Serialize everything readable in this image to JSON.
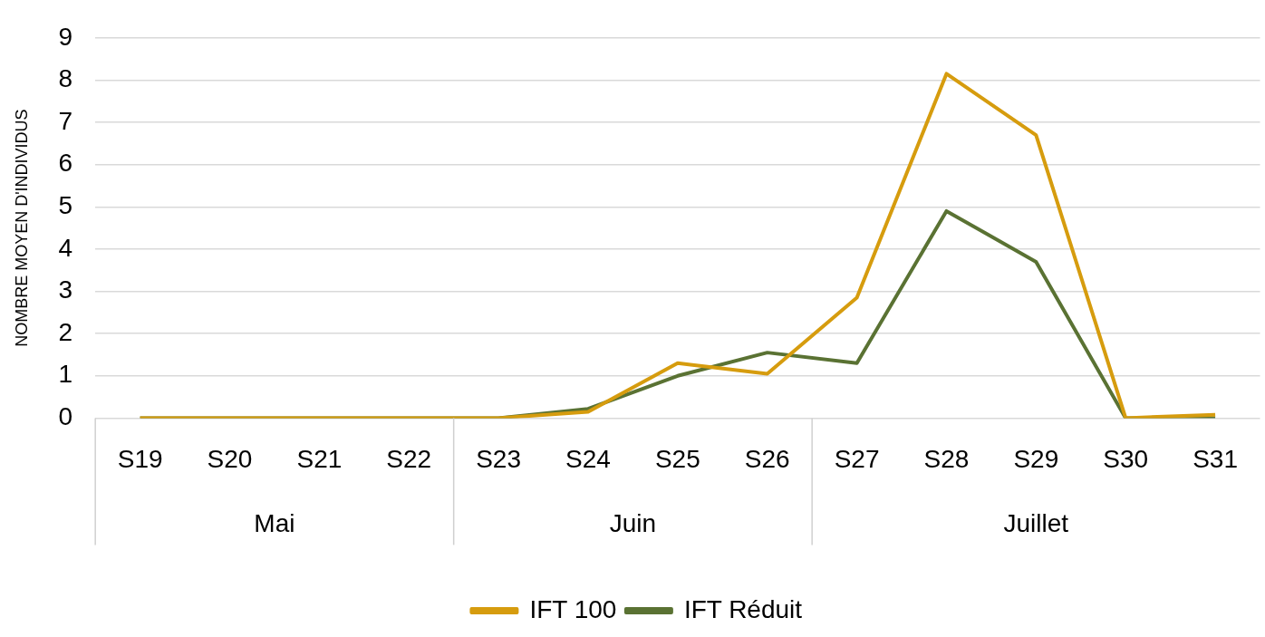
{
  "chart_data": {
    "type": "line",
    "ylabel": "NOMBRE MOYEN D'INDIVIDUS",
    "categories": [
      "S19",
      "S20",
      "S21",
      "S22",
      "S23",
      "S24",
      "S25",
      "S26",
      "S27",
      "S28",
      "S29",
      "S30",
      "S31"
    ],
    "series": [
      {
        "name": "IFT 100",
        "color": "#d69c0e",
        "values": [
          0,
          0,
          0,
          0,
          0,
          0.15,
          1.3,
          1.05,
          2.85,
          8.15,
          6.7,
          0,
          0.08
        ]
      },
      {
        "name": "IFT Réduit",
        "color": "#5a7233",
        "values": [
          0,
          0,
          0,
          0,
          0,
          0.22,
          1.0,
          1.55,
          1.3,
          4.9,
          3.7,
          0,
          0
        ]
      }
    ],
    "annotations": [
      "Mai",
      "Juin",
      "Juillet"
    ],
    "ylim": [
      0,
      9
    ],
    "yticks": [
      0,
      1,
      2,
      3,
      4,
      5,
      6,
      7,
      8,
      9
    ],
    "grid": "y",
    "legend": "bottom",
    "marker": "none",
    "line_style": "solid"
  }
}
